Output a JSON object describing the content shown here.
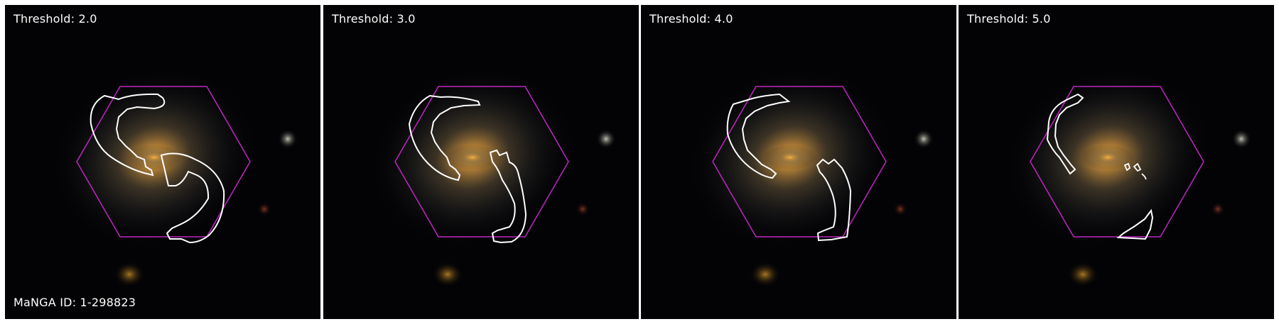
{
  "panels": [
    {
      "threshold_label": "Threshold: 2.0"
    },
    {
      "threshold_label": "Threshold: 3.0"
    },
    {
      "threshold_label": "Threshold: 4.0"
    },
    {
      "threshold_label": "Threshold: 5.0"
    }
  ],
  "id_label": "MaNGA ID: 1-298823",
  "colors": {
    "hexagon": "#c026c0",
    "contour": "#ffffff",
    "galaxy_core": "#e0a040",
    "background": "#030306"
  },
  "icons": [
    "galaxy-image",
    "ifu-hexagon",
    "contour"
  ]
}
